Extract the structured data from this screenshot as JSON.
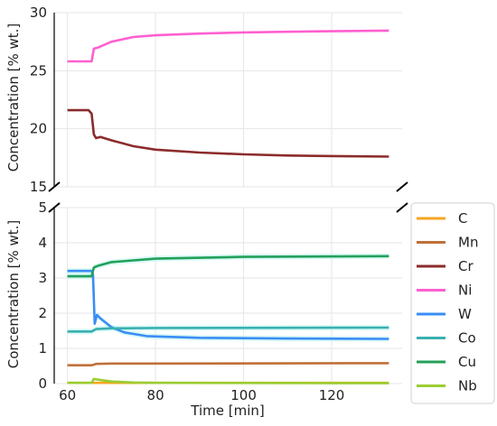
{
  "chart_data": {
    "type": "line",
    "xlabel": "Time [min]",
    "ylabel_top": "Concentration [% wt.]",
    "ylabel_bottom": "Concentration [% wt.]",
    "xlim": [
      57,
      136
    ],
    "x_ticks": [
      60,
      80,
      100,
      120
    ],
    "top_panel": {
      "ylim": [
        15,
        30
      ],
      "y_ticks": [
        15,
        20,
        25,
        30
      ]
    },
    "bottom_panel": {
      "ylim": [
        0,
        5
      ],
      "y_ticks": [
        0,
        1,
        2,
        3,
        4,
        5
      ]
    },
    "grid": true,
    "legend_position": "right",
    "series": [
      {
        "name": "C",
        "color": "#f5a623",
        "panel": "bottom",
        "points": [
          [
            60,
            0.02
          ],
          [
            133,
            0.02
          ]
        ]
      },
      {
        "name": "Mn",
        "color": "#c0703a",
        "panel": "bottom",
        "points": [
          [
            60,
            0.52
          ],
          [
            65.5,
            0.52
          ],
          [
            66.5,
            0.56
          ],
          [
            70,
            0.57
          ],
          [
            80,
            0.57
          ],
          [
            133,
            0.58
          ]
        ]
      },
      {
        "name": "Cr",
        "color": "#8c2b2b",
        "panel": "top",
        "points": [
          [
            60,
            21.6
          ],
          [
            64.8,
            21.6
          ],
          [
            65.5,
            21.3
          ],
          [
            66,
            19.5
          ],
          [
            66.5,
            19.2
          ],
          [
            67.5,
            19.3
          ],
          [
            70,
            19.0
          ],
          [
            75,
            18.5
          ],
          [
            80,
            18.2
          ],
          [
            90,
            17.95
          ],
          [
            100,
            17.8
          ],
          [
            110,
            17.7
          ],
          [
            120,
            17.65
          ],
          [
            133,
            17.6
          ]
        ]
      },
      {
        "name": "Ni",
        "color": "#ff5fd0",
        "panel": "top",
        "points": [
          [
            60,
            25.8
          ],
          [
            65.5,
            25.8
          ],
          [
            66,
            26.9
          ],
          [
            67,
            27.0
          ],
          [
            70,
            27.5
          ],
          [
            75,
            27.9
          ],
          [
            80,
            28.05
          ],
          [
            90,
            28.2
          ],
          [
            100,
            28.3
          ],
          [
            110,
            28.35
          ],
          [
            120,
            28.4
          ],
          [
            133,
            28.45
          ]
        ]
      },
      {
        "name": "W",
        "color": "#3a8df5",
        "panel": "bottom",
        "points": [
          [
            60,
            3.2
          ],
          [
            65.5,
            3.2
          ],
          [
            65.8,
            3.1
          ],
          [
            66.2,
            1.7
          ],
          [
            66.7,
            1.95
          ],
          [
            67.5,
            1.85
          ],
          [
            70,
            1.6
          ],
          [
            73,
            1.45
          ],
          [
            78,
            1.35
          ],
          [
            90,
            1.3
          ],
          [
            110,
            1.28
          ],
          [
            133,
            1.27
          ]
        ]
      },
      {
        "name": "Co",
        "color": "#3ab0b0",
        "panel": "bottom",
        "points": [
          [
            60,
            1.48
          ],
          [
            65.5,
            1.48
          ],
          [
            66.5,
            1.55
          ],
          [
            70,
            1.57
          ],
          [
            80,
            1.58
          ],
          [
            133,
            1.59
          ]
        ]
      },
      {
        "name": "Cu",
        "color": "#22a05a",
        "panel": "bottom",
        "points": [
          [
            60,
            3.05
          ],
          [
            65.5,
            3.05
          ],
          [
            66,
            3.3
          ],
          [
            67,
            3.35
          ],
          [
            70,
            3.45
          ],
          [
            75,
            3.5
          ],
          [
            80,
            3.55
          ],
          [
            100,
            3.6
          ],
          [
            133,
            3.62
          ]
        ]
      },
      {
        "name": "Nb",
        "color": "#9acd32",
        "panel": "bottom",
        "points": [
          [
            60,
            0.02
          ],
          [
            65.5,
            0.02
          ],
          [
            66,
            0.13
          ],
          [
            67,
            0.11
          ],
          [
            70,
            0.06
          ],
          [
            75,
            0.03
          ],
          [
            80,
            0.02
          ],
          [
            133,
            0.01
          ]
        ]
      }
    ]
  }
}
